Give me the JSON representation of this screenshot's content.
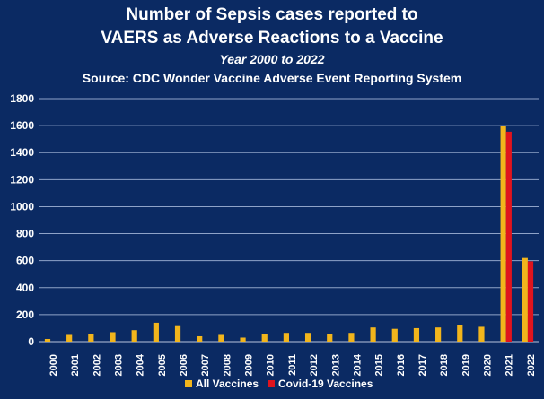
{
  "chart_data": {
    "type": "bar",
    "title_lines": [
      "Number of Sepsis cases reported to",
      "VAERS as Adverse Reactions to a Vaccine"
    ],
    "subtitle": "Year 2000 to 2022",
    "source": "Source: CDC Wonder Vaccine Adverse Event Reporting System",
    "categories": [
      "2000",
      "2001",
      "2002",
      "2003",
      "2004",
      "2005",
      "2006",
      "2007",
      "2008",
      "2009",
      "2010",
      "2011",
      "2012",
      "2013",
      "2014",
      "2015",
      "2016",
      "2017",
      "2018",
      "2019",
      "2020",
      "2021",
      "2022"
    ],
    "series": [
      {
        "name": "All Vaccines",
        "color": "#f2b51c",
        "values": [
          20,
          50,
          55,
          70,
          85,
          140,
          115,
          40,
          50,
          30,
          55,
          65,
          65,
          55,
          65,
          105,
          95,
          100,
          105,
          125,
          110,
          1595,
          620
        ]
      },
      {
        "name": "Covid-19 Vaccines",
        "color": "#e0141e",
        "values": [
          0,
          0,
          0,
          0,
          0,
          0,
          0,
          0,
          0,
          0,
          0,
          0,
          0,
          0,
          0,
          0,
          0,
          0,
          0,
          0,
          0,
          1555,
          595
        ]
      }
    ],
    "ylim": [
      0,
      1800
    ],
    "yticks": [
      0,
      200,
      400,
      600,
      800,
      1000,
      1200,
      1400,
      1600,
      1800
    ],
    "grid": true,
    "legend_position": "bottom"
  }
}
